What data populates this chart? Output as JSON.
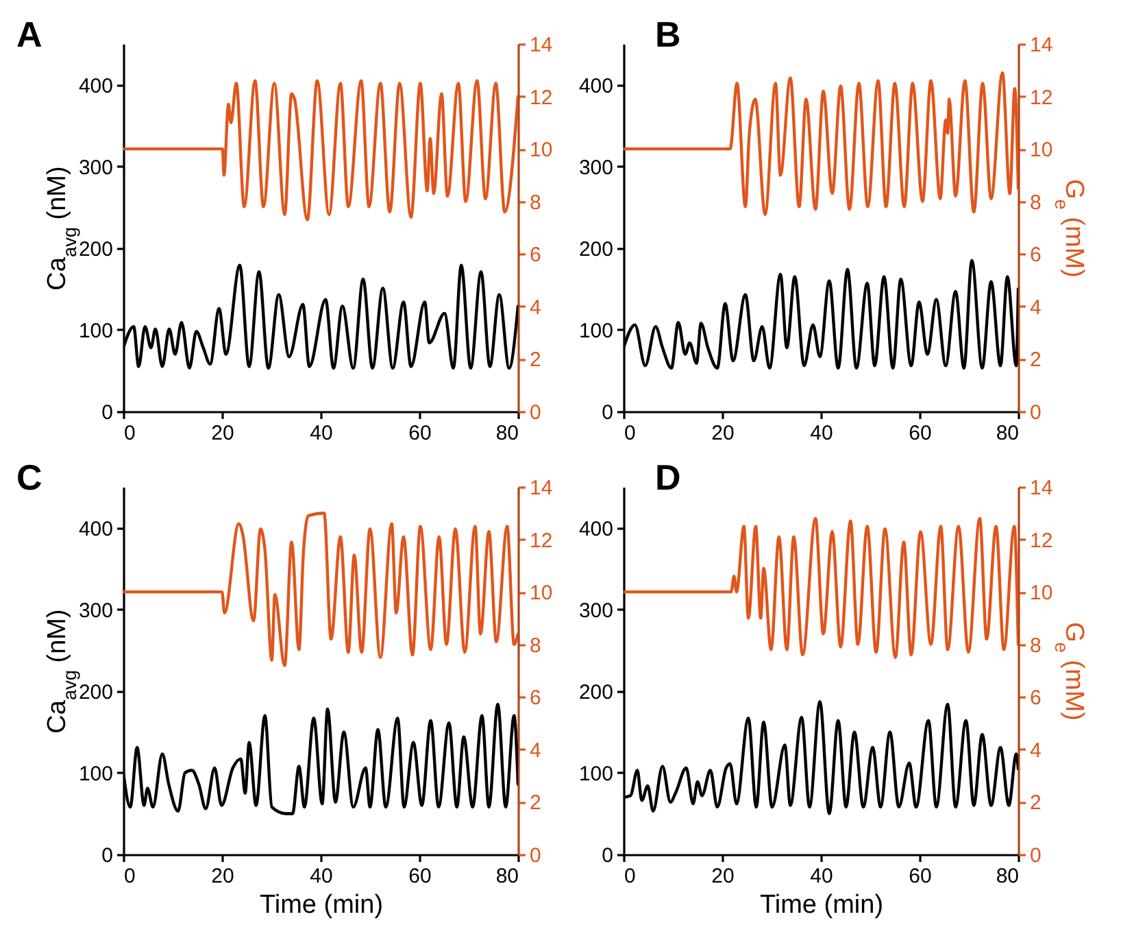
{
  "chart_data": [
    {
      "type": "line",
      "title": "A",
      "ylabel": "Ca$_{avg}$ (nM)",
      "xlim": [
        0,
        80
      ],
      "xticks": [
        0,
        20,
        40,
        60,
        80
      ],
      "ylim": [
        0,
        450
      ],
      "yticks": [
        0,
        100,
        200,
        300,
        400
      ],
      "y2lim": [
        0,
        14
      ],
      "y2ticks": [
        0,
        2,
        4,
        6,
        8,
        10,
        12,
        14
      ],
      "series": [
        {
          "color": "#000000",
          "x": [
            0,
            2.1,
            3.1,
            4.4,
            5.6,
            6.5,
            7.9,
            9.3,
            10.5,
            11.8,
            13.4,
            14.8,
            16.2,
            17.6,
            19.4,
            20.8,
            23.6,
            25.5,
            27.5,
            29.4,
            31.5,
            33.6,
            36.4,
            37.7,
            41,
            42.6,
            44.4,
            46.6,
            48.6,
            50.5,
            52.6,
            54.6,
            56.8,
            58.3,
            61.1,
            62,
            65.1,
            66.9,
            68.5,
            70.4,
            72.5,
            74.3,
            76.2,
            78.2,
            80
          ],
          "values": [
            78,
            104,
            55,
            104,
            78,
            101,
            55,
            101,
            70,
            109,
            53,
            98,
            78,
            58,
            126,
            70,
            179,
            55,
            171,
            53,
            143,
            67,
            131,
            55,
            137,
            53,
            129,
            53,
            162,
            53,
            151,
            53,
            134,
            55,
            134,
            84,
            120,
            53,
            179,
            53,
            171,
            55,
            143,
            53,
            129
          ]
        },
        {
          "color": "#e0561c",
          "axis": "y2",
          "x": [
            0,
            20.1,
            20.4,
            21.3,
            21.8,
            22.9,
            24.5,
            26.7,
            28.4,
            30.6,
            32.7,
            34.1,
            34.7,
            37.3,
            39.3,
            41.7,
            44,
            45.6,
            48.2,
            49.8,
            52.1,
            54,
            56,
            58.3,
            60.2,
            61.6,
            62.2,
            62.9,
            64.5,
            65.7,
            67.9,
            69.4,
            71.7,
            73.4,
            75.5,
            77.3,
            80
          ],
          "values": [
            10,
            10,
            9.0,
            11.7,
            11.0,
            12.5,
            7.8,
            12.6,
            7.8,
            12.5,
            7.5,
            12.1,
            11.9,
            7.3,
            12.6,
            7.5,
            12.5,
            7.8,
            12.6,
            7.8,
            12.5,
            7.6,
            12.5,
            7.4,
            12.5,
            8.4,
            10.4,
            8.3,
            12.1,
            8.2,
            12.5,
            8.0,
            12.6,
            8.1,
            12.5,
            7.6,
            12.0
          ]
        }
      ]
    },
    {
      "type": "line",
      "title": "B",
      "y2label": "G$_{e}$ (mM)",
      "xlim": [
        0,
        80
      ],
      "xticks": [
        0,
        20,
        40,
        60,
        80
      ],
      "ylim": [
        0,
        450
      ],
      "yticks": [
        0,
        100,
        200,
        300,
        400
      ],
      "y2lim": [
        0,
        14
      ],
      "y2ticks": [
        0,
        2,
        4,
        6,
        8,
        10,
        12,
        14
      ],
      "series": [
        {
          "color": "#000000",
          "x": [
            0,
            2.3,
            4.4,
            6.5,
            7.9,
            9.7,
            11.1,
            12.5,
            13.4,
            14.8,
            15.7,
            17.1,
            19,
            20.6,
            22.2,
            24.7,
            26.4,
            28.1,
            29.6,
            31.8,
            33.1,
            34.7,
            36.6,
            38.4,
            39.8,
            41.7,
            43.5,
            45.4,
            47.2,
            49.4,
            50.9,
            52.8,
            54.6,
            56.2,
            58.3,
            59.9,
            61.6,
            63.4,
            65.3,
            67.3,
            69,
            70.6,
            72.7,
            74.5,
            76.4,
            77.8,
            79.6,
            80
          ],
          "values": [
            78,
            106,
            56,
            104,
            78,
            53,
            109,
            70,
            84,
            59,
            108,
            78,
            53,
            132,
            62,
            143,
            62,
            104,
            53,
            168,
            78,
            165,
            56,
            106,
            67,
            160,
            53,
            174,
            53,
            157,
            56,
            165,
            53,
            162,
            56,
            134,
            70,
            137,
            56,
            147,
            53,
            185,
            53,
            159,
            56,
            165,
            56,
            150
          ]
        },
        {
          "color": "#e0561c",
          "axis": "y2",
          "x": [
            0,
            21.6,
            23,
            24.7,
            25.5,
            26.7,
            28.7,
            30.8,
            31.8,
            33.8,
            35.6,
            37,
            38.9,
            40.5,
            42.3,
            44,
            45.8,
            47.7,
            49.5,
            51.6,
            53.2,
            55,
            56.9,
            58.6,
            60.6,
            62.3,
            64.2,
            65.3,
            65.7,
            66,
            67.3,
            69.2,
            71,
            72.8,
            74.5,
            76.8,
            78.3,
            79.3,
            80
          ],
          "values": [
            10,
            10,
            12.5,
            7.8,
            10.6,
            11.9,
            7.5,
            12.5,
            9.0,
            12.7,
            7.8,
            11.9,
            7.7,
            12.2,
            8.3,
            12.4,
            7.7,
            12.5,
            7.8,
            12.6,
            7.8,
            12.5,
            7.8,
            12.5,
            8.0,
            12.6,
            8.1,
            11.1,
            10.6,
            11.9,
            8.2,
            12.6,
            7.6,
            12.5,
            8.1,
            12.9,
            8.3,
            12.3,
            8.5
          ]
        }
      ]
    },
    {
      "type": "line",
      "title": "C",
      "xlabel": "Time (min)",
      "ylabel": "Ca$_{avg}$ (nM)",
      "xlim": [
        0,
        80
      ],
      "xticks": [
        0,
        20,
        40,
        60,
        80
      ],
      "ylim": [
        0,
        450
      ],
      "yticks": [
        0,
        100,
        200,
        300,
        400
      ],
      "y2lim": [
        0,
        14
      ],
      "y2ticks": [
        0,
        2,
        4,
        6,
        8,
        10,
        12,
        14
      ],
      "series": [
        {
          "color": "#000000",
          "x": [
            0,
            1.4,
            2.8,
            4.2,
            4.9,
            6,
            7.9,
            9.2,
            11.1,
            12.5,
            13.9,
            15.3,
            16.7,
            18.5,
            19.9,
            22.2,
            23.8,
            24.7,
            25.5,
            26.9,
            28.7,
            30.1,
            32.9,
            34.3,
            35.6,
            36.7,
            38.6,
            40.3,
            41.4,
            43,
            44.7,
            46.6,
            49.1,
            50,
            51.6,
            53.2,
            55.6,
            56.9,
            58.8,
            60.5,
            62.3,
            63.9,
            66,
            67.6,
            69,
            70.8,
            72.7,
            74.1,
            75.9,
            77.5,
            79.2,
            80
          ],
          "values": [
            100,
            58,
            131,
            60,
            81,
            58,
            123,
            86,
            53,
            100,
            103,
            86,
            56,
            106,
            60,
            106,
            117,
            75,
            137,
            60,
            170,
            58,
            50,
            50,
            108,
            58,
            167,
            62,
            178,
            64,
            150,
            58,
            106,
            58,
            153,
            58,
            167,
            58,
            137,
            60,
            164,
            58,
            161,
            58,
            144,
            58,
            170,
            58,
            184,
            58,
            170,
            86
          ]
        },
        {
          "color": "#e0561c",
          "axis": "y2",
          "x": [
            0,
            20,
            20.5,
            23.4,
            24.2,
            26.4,
            27.8,
            28.7,
            30.1,
            30.7,
            32.7,
            34.1,
            35.6,
            36.5,
            37.5,
            40.7,
            42.1,
            44,
            45.6,
            46.8,
            48.3,
            50,
            52.1,
            54.4,
            55.3,
            56.8,
            58.6,
            60.2,
            62.3,
            64,
            65.5,
            67.3,
            69.2,
            71.3,
            72.4,
            74.1,
            75.6,
            77.8,
            79.2,
            80
          ],
          "values": [
            10,
            10,
            9.2,
            12.6,
            12.2,
            8.9,
            12.4,
            11.6,
            7.4,
            9.9,
            7.2,
            11.9,
            7.8,
            11.5,
            12.9,
            13.0,
            8.2,
            12.1,
            7.7,
            11.4,
            7.7,
            12.4,
            7.5,
            12.6,
            9.2,
            12.1,
            7.6,
            12.5,
            7.8,
            12.1,
            8.0,
            12.4,
            7.7,
            12.5,
            8.4,
            12.3,
            8.1,
            12.5,
            8.0,
            8.4
          ]
        }
      ]
    },
    {
      "type": "line",
      "title": "D",
      "xlabel": "Time (min)",
      "y2label": "G$_{e}$ (mM)",
      "xlim": [
        0,
        80
      ],
      "xticks": [
        0,
        20,
        40,
        60,
        80
      ],
      "ylim": [
        0,
        450
      ],
      "yticks": [
        0,
        100,
        200,
        300,
        400
      ],
      "y2lim": [
        0,
        14
      ],
      "y2ticks": [
        0,
        2,
        4,
        6,
        8,
        10,
        12,
        14
      ],
      "series": [
        {
          "color": "#000000",
          "x": [
            0,
            1.4,
            2.8,
            3.7,
            4.9,
            6,
            7.9,
            9.5,
            10.6,
            12.7,
            14.1,
            15,
            15.9,
            17.6,
            19,
            20.8,
            21.6,
            22.9,
            25.3,
            26.9,
            28.4,
            30.1,
            32.7,
            33.8,
            36.1,
            37.7,
            39.8,
            41.7,
            43.5,
            45.1,
            46.8,
            48.6,
            50.5,
            52.1,
            54,
            55.8,
            57.9,
            59.3,
            61.8,
            63.4,
            65.7,
            67.3,
            69.4,
            71,
            72.7,
            74.5,
            76.4,
            78.1,
            79.6,
            80
          ],
          "values": [
            70,
            72,
            103,
            66,
            84,
            53,
            108,
            64,
            76,
            106,
            62,
            89,
            72,
            103,
            58,
            106,
            111,
            62,
            167,
            58,
            162,
            58,
            134,
            60,
            168,
            58,
            187,
            50,
            164,
            58,
            150,
            58,
            131,
            58,
            150,
            58,
            112,
            58,
            164,
            58,
            184,
            58,
            164,
            60,
            147,
            60,
            131,
            60,
            123,
            105
          ]
        },
        {
          "color": "#e0561c",
          "axis": "y2",
          "x": [
            0,
            21.8,
            22.4,
            22.9,
            24.4,
            25.3,
            26.8,
            27.8,
            28.4,
            29.9,
            31.5,
            33.1,
            34.5,
            36.3,
            38.9,
            40.5,
            42.3,
            44,
            46,
            47.5,
            49.4,
            51.2,
            53,
            55.1,
            56.8,
            58.3,
            60.2,
            62.3,
            64.3,
            65.7,
            67.9,
            69.9,
            72.2,
            73.6,
            75.5,
            77.1,
            79.2,
            80
          ],
          "values": [
            10,
            10,
            10.6,
            10,
            12.5,
            9.0,
            12.5,
            9.0,
            10.9,
            7.8,
            12.1,
            7.8,
            12.1,
            7.6,
            12.8,
            8.4,
            12.3,
            7.9,
            12.7,
            8.0,
            12.5,
            7.7,
            12.4,
            7.5,
            11.9,
            7.6,
            12.3,
            8.0,
            12.5,
            7.8,
            12.5,
            7.7,
            12.8,
            8.2,
            12.5,
            7.8,
            12.5,
            8.0
          ]
        }
      ]
    }
  ]
}
